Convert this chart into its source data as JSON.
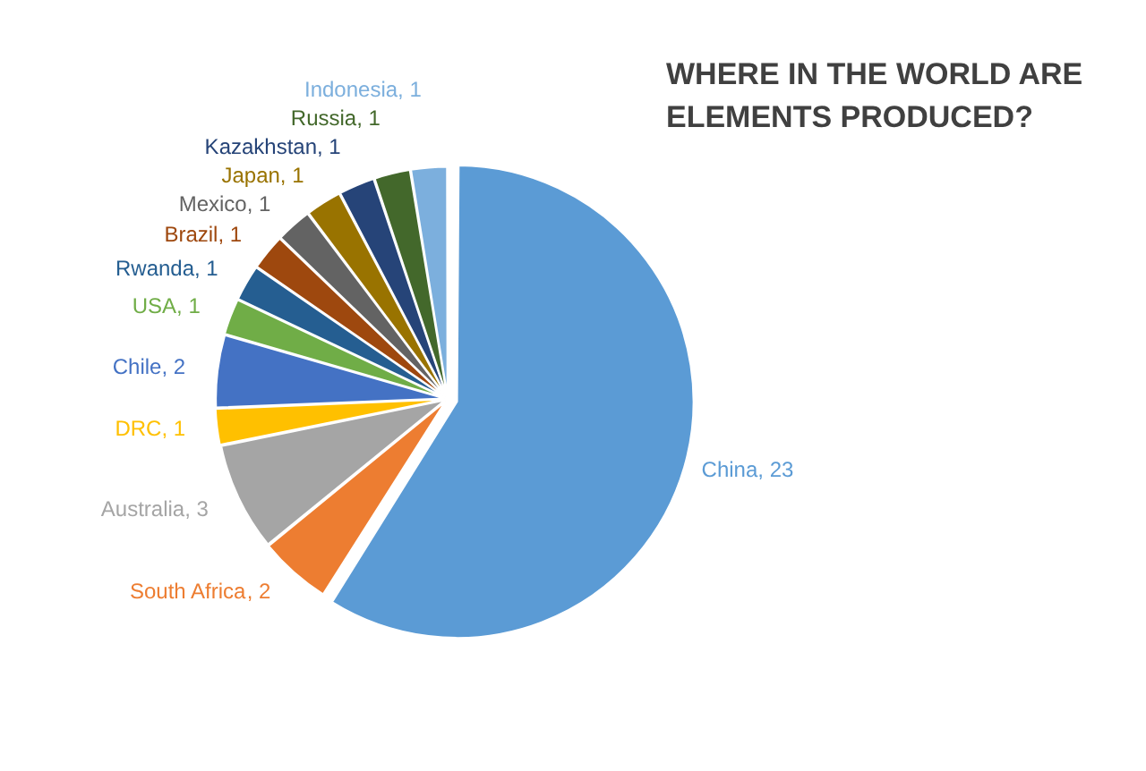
{
  "chart_data": {
    "type": "pie",
    "title": "WHERE IN THE WORLD ARE ELEMENTS PRODUCED?",
    "categories": [
      "China",
      "South Africa",
      "Australia",
      "DRC",
      "Chile",
      "USA",
      "Rwanda",
      "Brazil",
      "Mexico",
      "Japan",
      "Kazakhstan",
      "Russia",
      "Indonesia"
    ],
    "values": [
      23,
      2,
      3,
      1,
      2,
      1,
      1,
      1,
      1,
      1,
      1,
      1,
      1
    ],
    "value_labels": [
      ", 23",
      ", 2",
      ", 3",
      ", 1",
      ", 2",
      ", 1",
      ", 1",
      ", 1",
      ", 1",
      ", 1",
      ", 1",
      ", 1",
      ", 1"
    ],
    "colors": [
      "#5b9bd5",
      "#ed7d31",
      "#a5a5a5",
      "#ffc000",
      "#4472c4",
      "#70ad47",
      "#255e91",
      "#9e480e",
      "#636363",
      "#997300",
      "#264478",
      "#43682b",
      "#7cafdd"
    ],
    "legend": false
  }
}
